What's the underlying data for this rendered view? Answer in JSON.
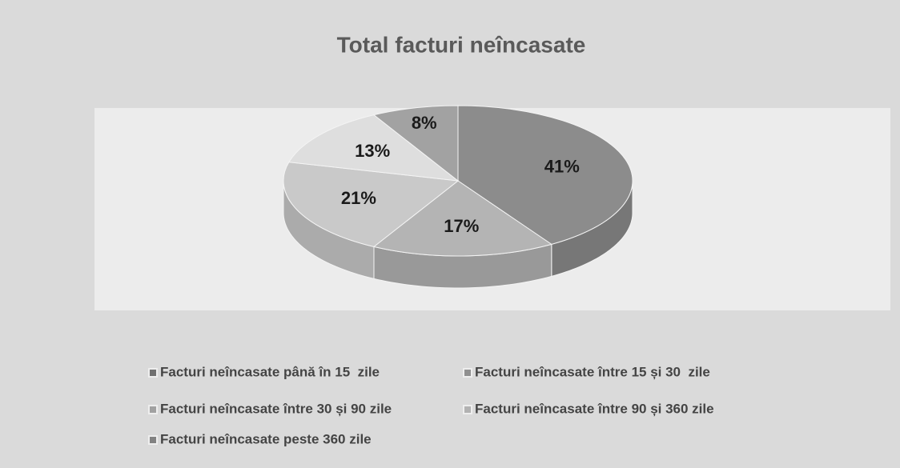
{
  "chart_data": {
    "type": "pie",
    "title": "Total facturi neîncasate",
    "categories": [
      "Facturi neîncasate până în 15  zile",
      "Facturi neîncasate între 15 și 30  zile",
      "Facturi neîncasate între 30 și 90 zile",
      "Facturi neîncasate între 90 și 360 zile",
      "Facturi neîncasate peste 360 zile"
    ],
    "values": [
      41,
      17,
      21,
      13,
      8
    ],
    "value_labels": [
      "41%",
      "17%",
      "21%",
      "13%",
      "8%"
    ],
    "colors": [
      "#8c8c8c",
      "#b4b4b4",
      "#c9c9c9",
      "#dedede",
      "#a2a2a2"
    ],
    "legend": "bottom"
  }
}
